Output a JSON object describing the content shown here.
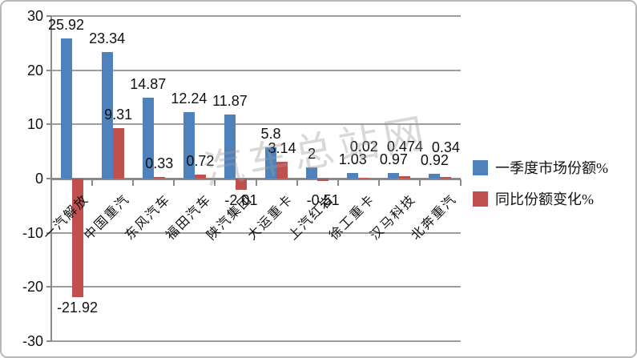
{
  "chart_data": {
    "type": "bar",
    "title": "",
    "categories": [
      "一汽解放",
      "中国重汽",
      "东风汽车",
      "福田汽车",
      "陕汽集团",
      "大运重卡",
      "上汽红岩",
      "徐工重卡",
      "汉马科技",
      "北奔重汽"
    ],
    "series": [
      {
        "name": "一季度市场份额%",
        "color": "#4F81BD",
        "values": [
          25.92,
          23.34,
          14.87,
          12.24,
          11.87,
          5.8,
          2,
          1.03,
          0.97,
          0.92
        ],
        "labels": [
          "25.92",
          "23.34",
          "14.87",
          "12.24",
          "11.87",
          "5.8",
          "2",
          "1.03",
          "0.97",
          "0.92"
        ]
      },
      {
        "name": "同比份额变化%",
        "color": "#C0504D",
        "values": [
          -21.92,
          9.31,
          0.33,
          0.72,
          -2.01,
          3.14,
          -0.51,
          0.02,
          0.474,
          0.34
        ],
        "labels": [
          "-21.92",
          "9.31",
          "0.33",
          "0.72",
          "-2.01",
          "3.14",
          "-0.51",
          "0.02",
          "0.474",
          "0.34"
        ]
      }
    ],
    "y_axis": {
      "min": -30,
      "max": 30,
      "step": 10,
      "tick_labels": [
        "30",
        "20",
        "10",
        "0",
        "-10",
        "-20",
        "-30"
      ]
    },
    "grid": true,
    "legend_position": "right"
  },
  "watermark": {
    "text": "汽车总站网"
  },
  "colors": {
    "series_blue": "#4F81BD",
    "series_red": "#C0504D",
    "gridline": "#9d9d9d",
    "axis": "#8a8a8a",
    "text": "#111111"
  }
}
